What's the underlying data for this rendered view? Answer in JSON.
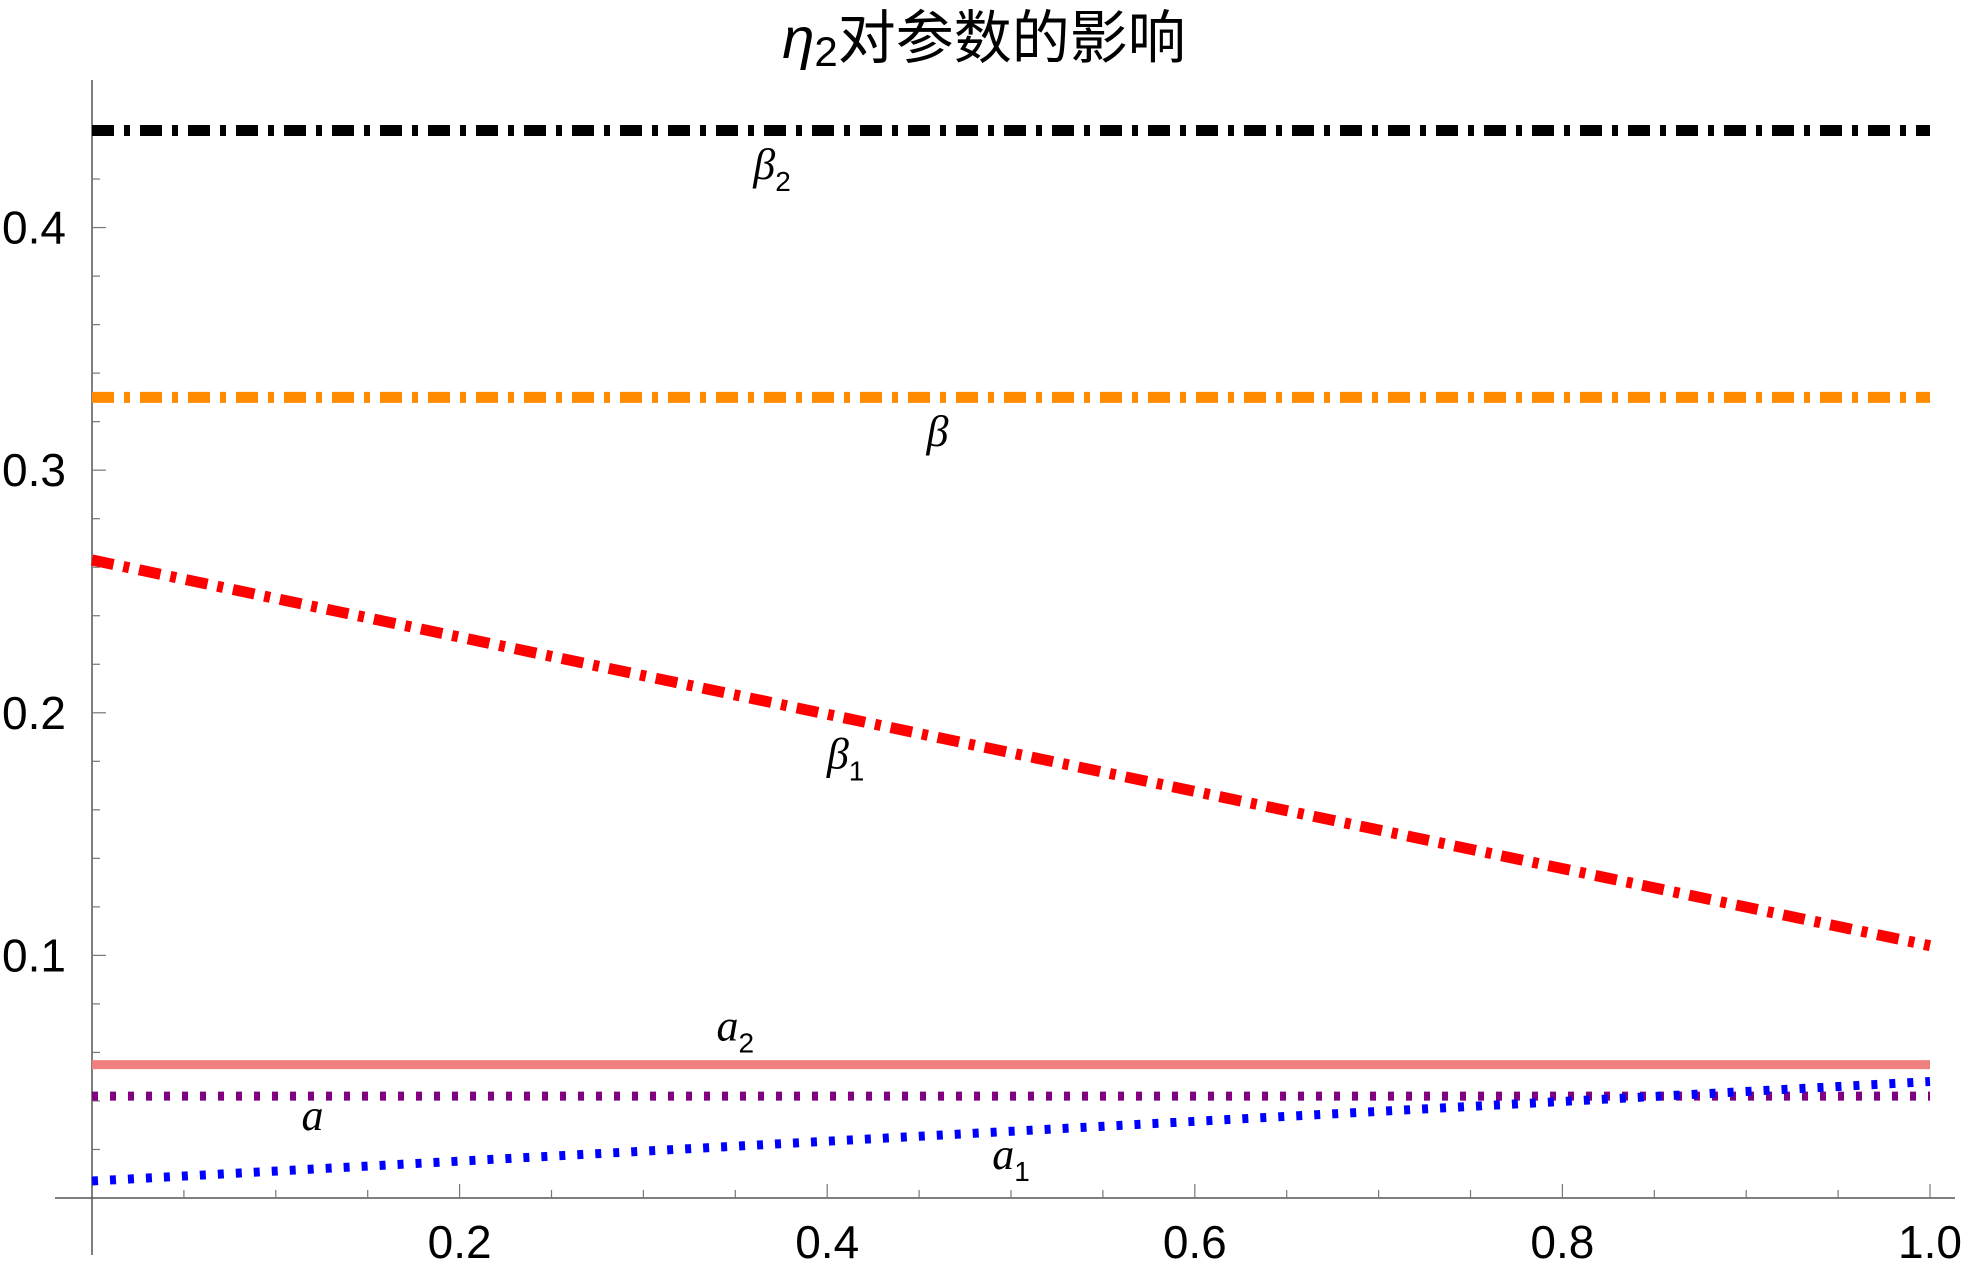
{
  "chart_data": {
    "type": "line",
    "title": "η₂对参数的影响",
    "title_symbol": "η",
    "title_subscript": "2",
    "title_text": "对参数的影响",
    "xlabel": "",
    "ylabel": "",
    "xlim": [
      0.0,
      1.0
    ],
    "ylim": [
      0.0,
      0.46
    ],
    "x_ticks": [
      0.2,
      0.4,
      0.6,
      0.8,
      1.0
    ],
    "x_tick_labels": [
      "0.2",
      "0.4",
      "0.6",
      "0.8",
      "1.0"
    ],
    "y_ticks": [
      0.1,
      0.2,
      0.3,
      0.4
    ],
    "y_tick_labels": [
      "0.1",
      "0.2",
      "0.3",
      "0.4"
    ],
    "grid": false,
    "legend": "none",
    "series": [
      {
        "name": "β₂",
        "symbol": "β",
        "subscript": "2",
        "x": [
          0.0,
          1.0
        ],
        "y": [
          0.44,
          0.44
        ],
        "color": "#000000",
        "style": "dash-dot",
        "label_at": [
          0.37,
          0.42
        ]
      },
      {
        "name": "β",
        "symbol": "β",
        "subscript": "",
        "x": [
          0.0,
          1.0
        ],
        "y": [
          0.33,
          0.33
        ],
        "color": "#ff8c00",
        "style": "dash-dot",
        "label_at": [
          0.46,
          0.31
        ]
      },
      {
        "name": "β₁",
        "symbol": "β",
        "subscript": "1",
        "x": [
          0.0,
          1.0
        ],
        "y": [
          0.263,
          0.104
        ],
        "color": "#ff0000",
        "style": "dash-dot",
        "label_at": [
          0.41,
          0.177
        ]
      },
      {
        "name": "a₂",
        "symbol": "a",
        "subscript": "2",
        "x": [
          0.0,
          1.0
        ],
        "y": [
          0.055,
          0.055
        ],
        "color": "#f08080",
        "style": "solid",
        "label_at": [
          0.35,
          0.065
        ]
      },
      {
        "name": "a",
        "symbol": "a",
        "subscript": "",
        "x": [
          0.0,
          1.0
        ],
        "y": [
          0.042,
          0.042
        ],
        "color": "#800080",
        "style": "dotted",
        "label_at": [
          0.12,
          0.028
        ]
      },
      {
        "name": "a₁",
        "symbol": "a",
        "subscript": "1",
        "x": [
          0.0,
          1.0
        ],
        "y": [
          0.007,
          0.048
        ],
        "color": "#0000ff",
        "style": "dotted",
        "label_at": [
          0.5,
          0.012
        ]
      }
    ]
  }
}
